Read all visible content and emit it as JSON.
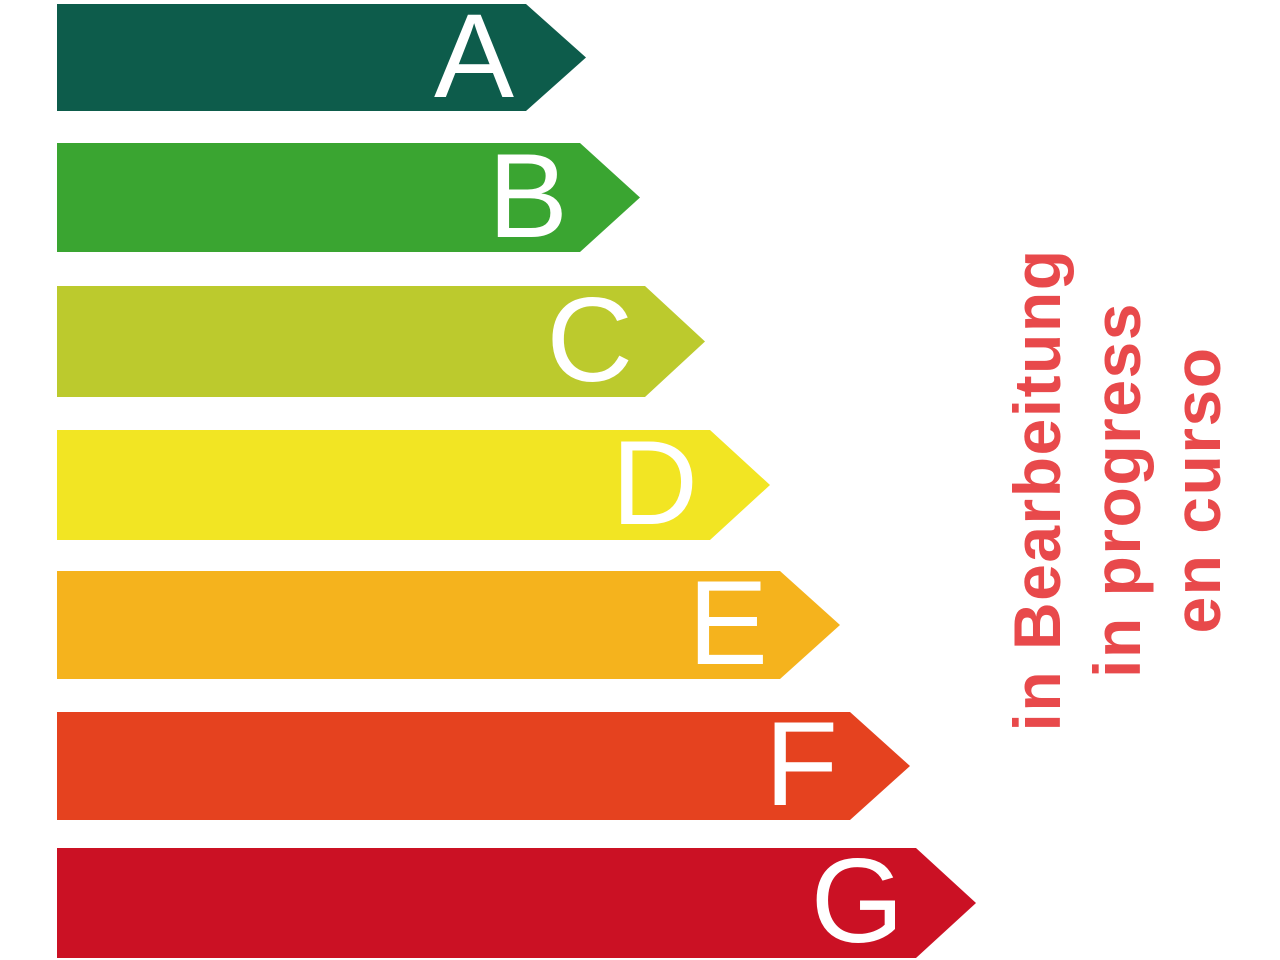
{
  "chart": {
    "bars": [
      {
        "label": "A",
        "color": "#0d5c4b"
      },
      {
        "label": "B",
        "color": "#3aa531"
      },
      {
        "label": "C",
        "color": "#bcca2d"
      },
      {
        "label": "D",
        "color": "#f2e523"
      },
      {
        "label": "E",
        "color": "#f5b31d"
      },
      {
        "label": "F",
        "color": "#e5421f"
      },
      {
        "label": "G",
        "color": "#cb1124"
      }
    ],
    "letter_color": "#ffffff",
    "background": "#ffffff"
  },
  "status": {
    "lines": [
      "in Bearbeitung",
      "in progress",
      "en curso"
    ],
    "color": "#e8494b"
  },
  "chart_data": {
    "type": "bar",
    "orientation": "horizontal",
    "categories": [
      "A",
      "B",
      "C",
      "D",
      "E",
      "F",
      "G"
    ],
    "values": [
      529,
      583,
      648,
      713,
      783,
      853,
      919
    ],
    "value_unit": "arrow length in px, left edge x=57, increasing by rating class",
    "colors": [
      "#0d5c4b",
      "#3aa531",
      "#bcca2d",
      "#f2e523",
      "#f5b31d",
      "#e5421f",
      "#cb1124"
    ],
    "bar_label_color": "#ffffff",
    "bar_shape": "right-pointing arrow, tip depth 60px",
    "annotations": [
      "in Bearbeitung",
      "in progress",
      "en curso"
    ],
    "annotation_color": "#e8494b",
    "annotation_rotation_deg": -90,
    "title": "",
    "xlabel": "",
    "ylabel": "",
    "grid": false,
    "axes": false,
    "legend": false
  }
}
